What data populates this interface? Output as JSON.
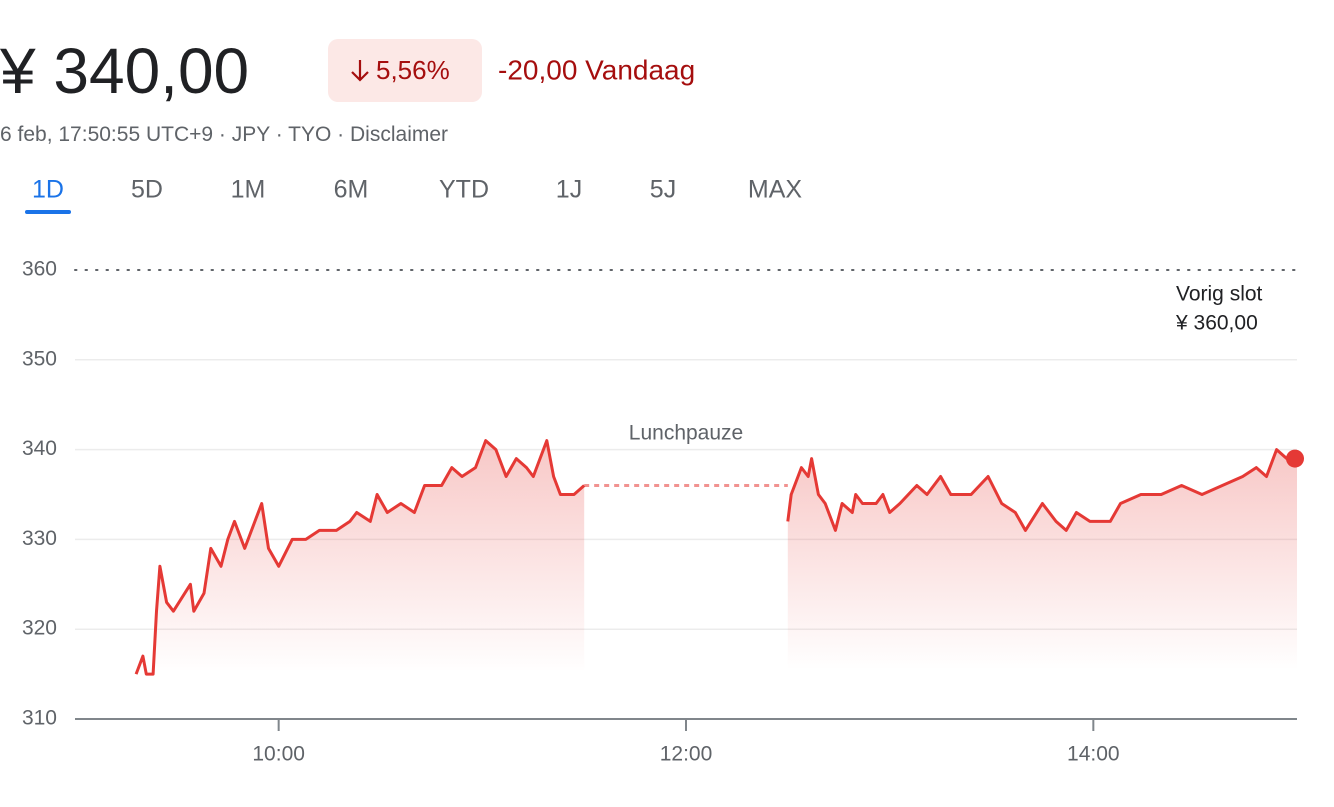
{
  "header": {
    "price": "¥ 340,00",
    "change_pct": "5,56%",
    "change": "-20,00 Vandaag",
    "meta": [
      "6 feb, 17:50:55 UTC+9",
      "JPY",
      "TYO",
      "Disclaimer"
    ]
  },
  "tabs": {
    "items": [
      "1D",
      "5D",
      "1M",
      "6M",
      "YTD",
      "1J",
      "5J",
      "MAX"
    ],
    "active": "1D"
  },
  "chart_data": {
    "type": "line",
    "color": "#e53935",
    "x": [
      "09:18",
      "09:20",
      "09:21",
      "09:23",
      "09:24",
      "09:25",
      "09:27",
      "09:29",
      "09:34",
      "09:35",
      "09:38",
      "09:40",
      "09:43",
      "09:45",
      "09:47",
      "09:50",
      "09:53",
      "09:55",
      "09:57",
      "10:00",
      "10:04",
      "10:08",
      "10:12",
      "10:17",
      "10:21",
      "10:23",
      "10:27",
      "10:29",
      "10:32",
      "10:36",
      "10:40",
      "10:43",
      "10:48",
      "10:51",
      "10:54",
      "10:58",
      "11:01",
      "11:04",
      "11:07",
      "11:10",
      "11:13",
      "11:15",
      "11:19",
      "11:21",
      "11:23",
      "11:27",
      "11:30",
      "12:00",
      "12:30",
      "12:31",
      "12:34",
      "12:36",
      "12:37",
      "12:39",
      "12:41",
      "12:44",
      "12:46",
      "12:49",
      "12:50",
      "12:52",
      "12:56",
      "12:58",
      "13:00",
      "13:03",
      "13:08",
      "13:11",
      "13:15",
      "13:18",
      "13:24",
      "13:29",
      "13:33",
      "13:37",
      "13:40",
      "13:45",
      "13:49",
      "13:52",
      "13:55",
      "13:59",
      "14:05",
      "14:08",
      "14:14",
      "14:20",
      "14:26",
      "14:32",
      "14:38",
      "14:44",
      "14:48",
      "14:51",
      "14:54",
      "14:57",
      "15:00"
    ],
    "values": [
      315,
      317,
      315,
      315,
      322,
      327,
      323,
      322,
      325,
      322,
      324,
      329,
      327,
      330,
      332,
      329,
      332,
      334,
      329,
      327,
      330,
      330,
      331,
      331,
      332,
      333,
      332,
      335,
      333,
      334,
      333,
      336,
      336,
      338,
      337,
      338,
      341,
      340,
      337,
      339,
      338,
      337,
      341,
      337,
      335,
      335,
      336,
      null,
      332,
      335,
      338,
      337,
      339,
      335,
      334,
      331,
      334,
      333,
      335,
      334,
      334,
      335,
      333,
      334,
      336,
      335,
      337,
      335,
      335,
      337,
      334,
      333,
      331,
      334,
      332,
      331,
      333,
      332,
      332,
      334,
      335,
      335,
      336,
      335,
      336,
      337,
      338,
      337,
      340,
      339,
      339
    ],
    "xlim": [
      "09:00",
      "15:00"
    ],
    "xticks": [
      "10:00",
      "12:00",
      "14:00"
    ],
    "ylim": [
      310,
      360
    ],
    "yticks": [
      310,
      320,
      330,
      340,
      350,
      360
    ],
    "grid": true,
    "reference": {
      "value": 360,
      "label": "Vorig slot",
      "value_label": "¥ 360,00"
    },
    "annotation": "Lunchpauze"
  }
}
